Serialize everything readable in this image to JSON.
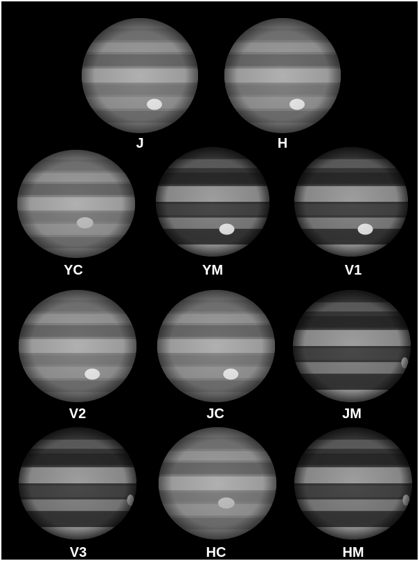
{
  "panels": [
    {
      "label": "J",
      "row": 1,
      "variant": "cont",
      "spot": "bright"
    },
    {
      "label": "H",
      "row": 1,
      "variant": "cont",
      "spot": "bright"
    },
    {
      "label": "YC",
      "row": 2,
      "variant": "cont",
      "spot": "faint"
    },
    {
      "label": "YM",
      "row": 2,
      "variant": "methane",
      "spot": "bright"
    },
    {
      "label": "V1",
      "row": 2,
      "variant": "methane",
      "spot": "bright"
    },
    {
      "label": "V2",
      "row": 3,
      "variant": "cont",
      "spot": "bright"
    },
    {
      "label": "JC",
      "row": 3,
      "variant": "cont",
      "spot": "bright"
    },
    {
      "label": "JM",
      "row": 3,
      "variant": "methane",
      "spot": "limb"
    },
    {
      "label": "V3",
      "row": 4,
      "variant": "methane",
      "spot": "limb"
    },
    {
      "label": "HC",
      "row": 4,
      "variant": "cont",
      "spot": "faint"
    },
    {
      "label": "HM",
      "row": 4,
      "variant": "methane",
      "spot": "limb"
    }
  ],
  "colors": {
    "background": "#000000",
    "label": "#ffffff"
  }
}
